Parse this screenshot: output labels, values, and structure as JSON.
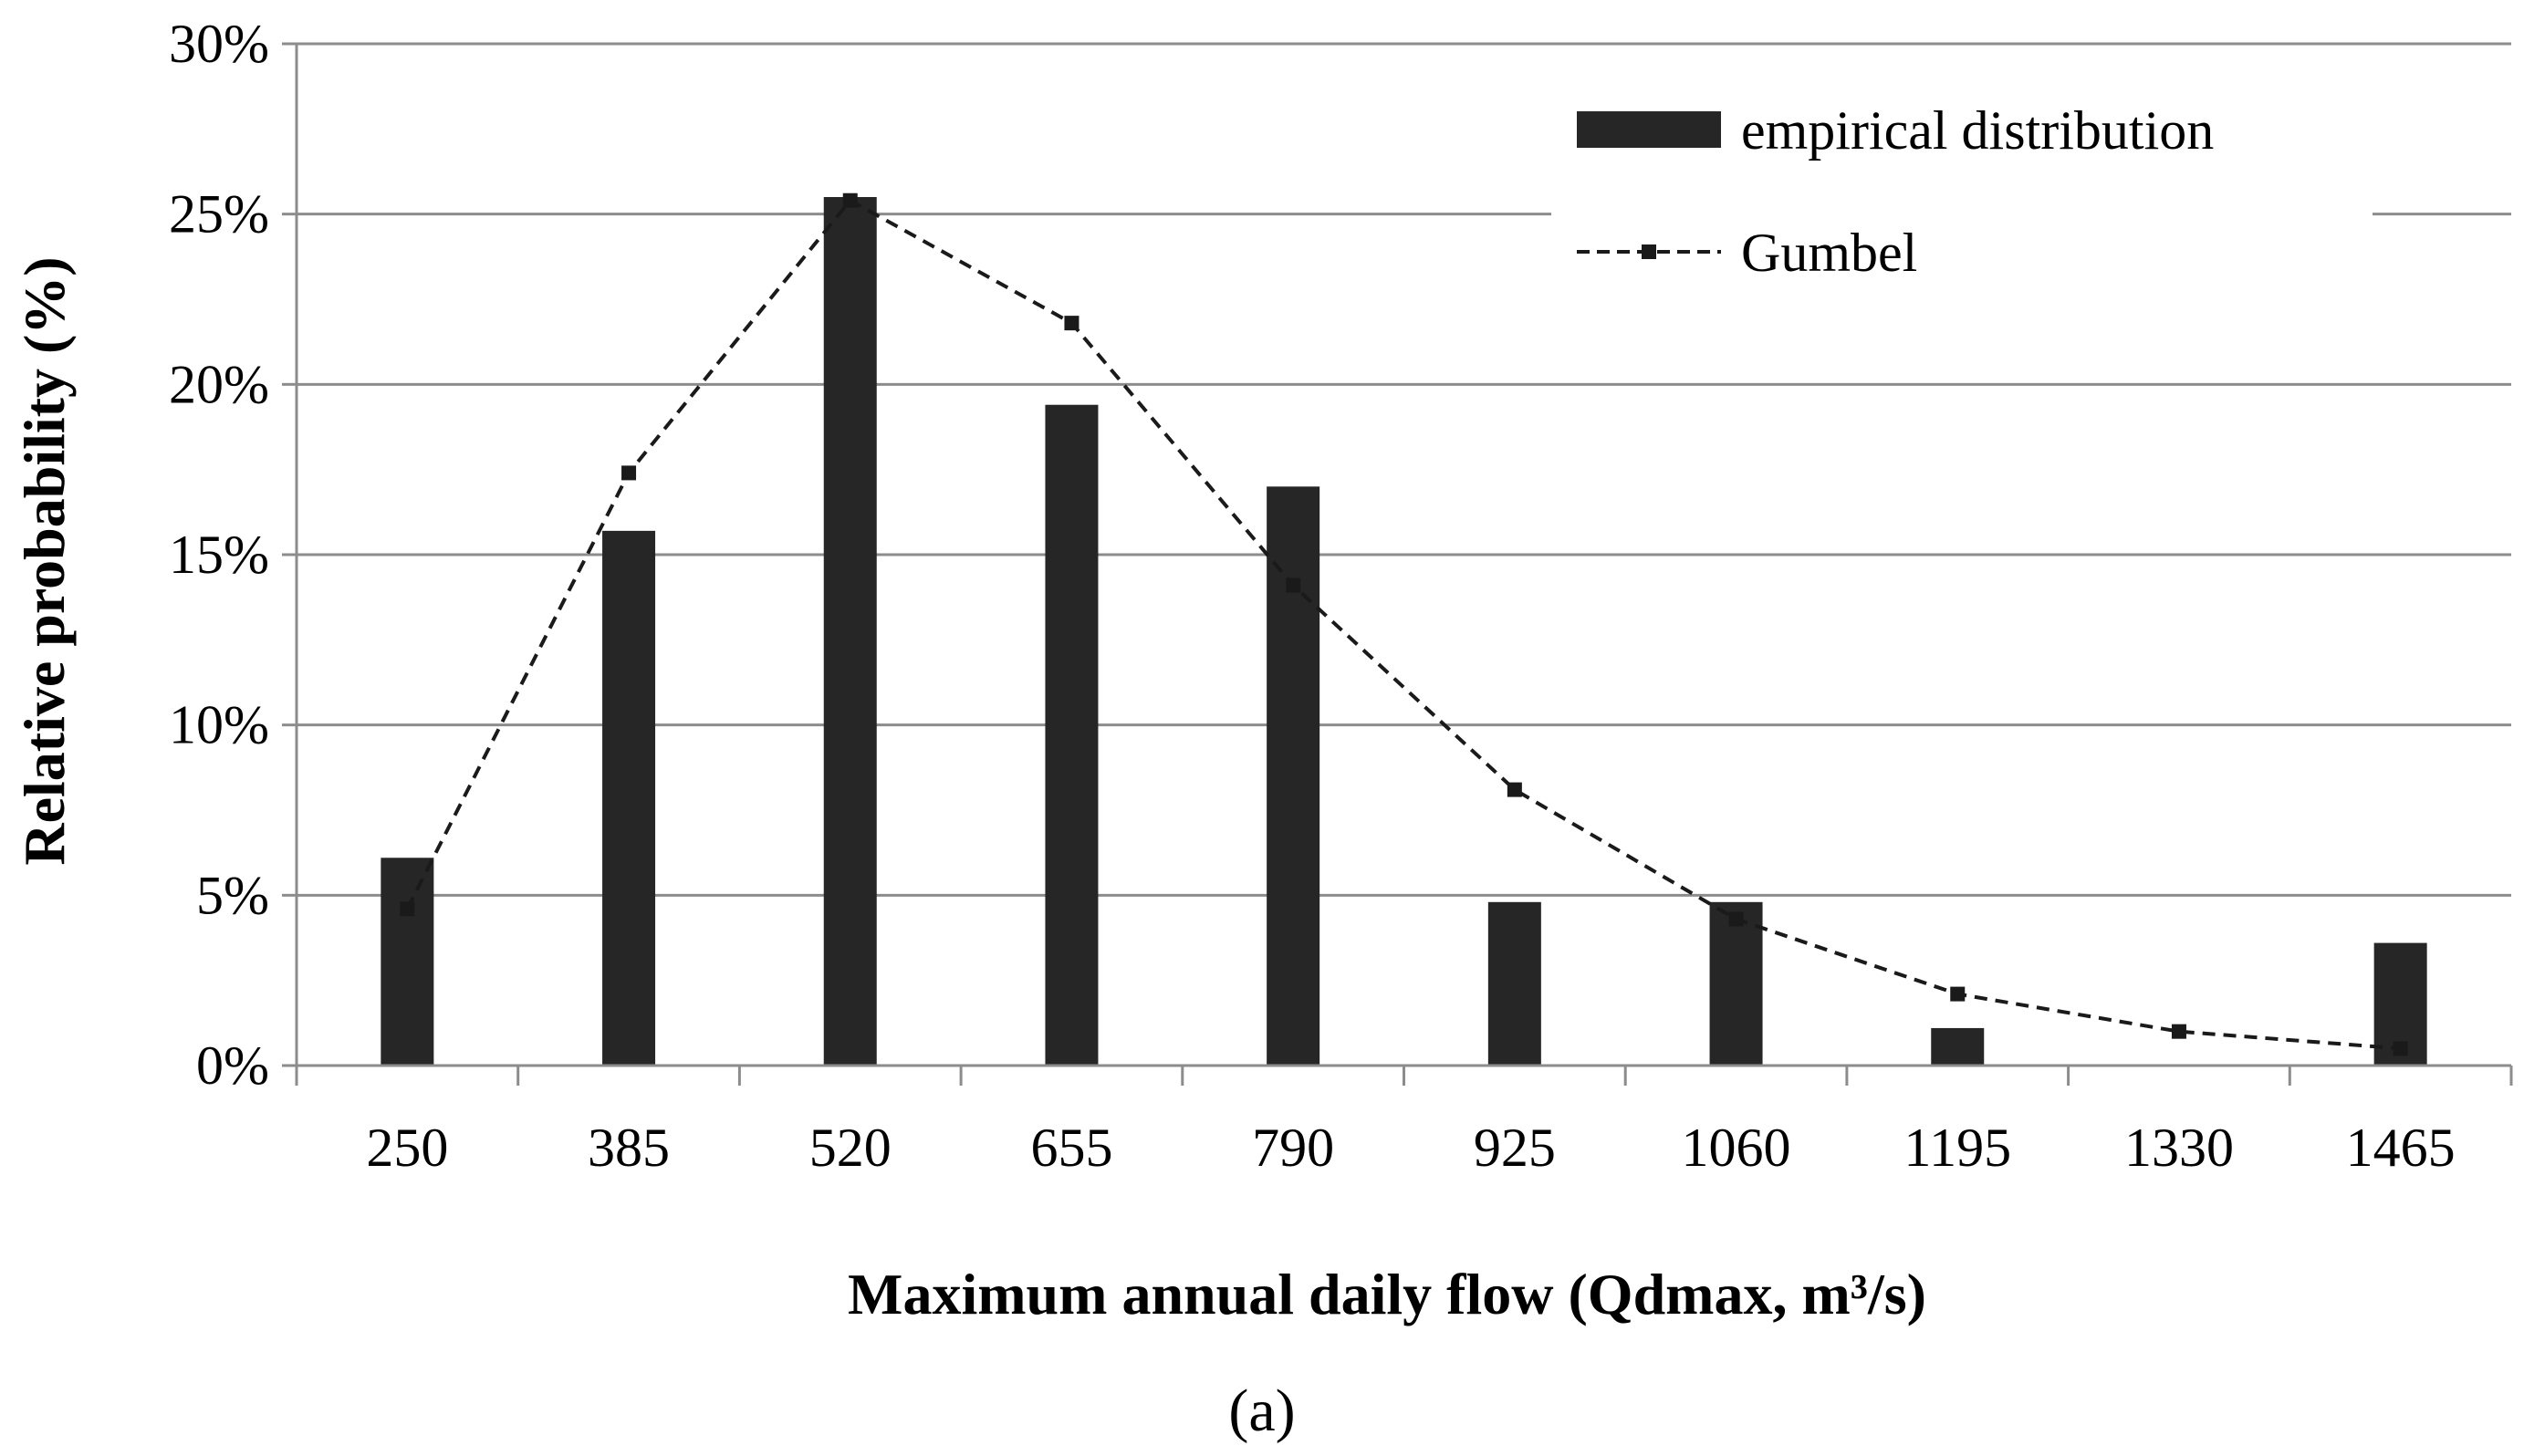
{
  "chart_data": {
    "type": "bar",
    "title": "",
    "caption": "(a)",
    "xlabel": "Maximum annual daily flow (Qdmax, m³/s)",
    "ylabel": "Relative probability (%)",
    "categories": [
      "250",
      "385",
      "520",
      "655",
      "790",
      "925",
      "1060",
      "1195",
      "1330",
      "1465"
    ],
    "ylim": [
      0,
      30
    ],
    "yticks": [
      0,
      5,
      10,
      15,
      20,
      25,
      30
    ],
    "ytick_labels": [
      "0%",
      "5%",
      "10%",
      "15%",
      "20%",
      "25%",
      "30%"
    ],
    "grid": true,
    "legend_position": "top-right",
    "series": [
      {
        "name": "empirical distribution",
        "kind": "bar",
        "color": "#262626",
        "values": [
          6.1,
          15.7,
          25.5,
          19.4,
          17.0,
          4.8,
          4.8,
          1.1,
          0,
          3.6
        ]
      },
      {
        "name": "Gumbel",
        "kind": "line",
        "style": "dashed",
        "marker": "square",
        "color": "#1a1a1a",
        "values": [
          4.6,
          17.4,
          25.4,
          21.8,
          14.1,
          8.1,
          4.3,
          2.1,
          1.0,
          0.5
        ]
      }
    ]
  }
}
